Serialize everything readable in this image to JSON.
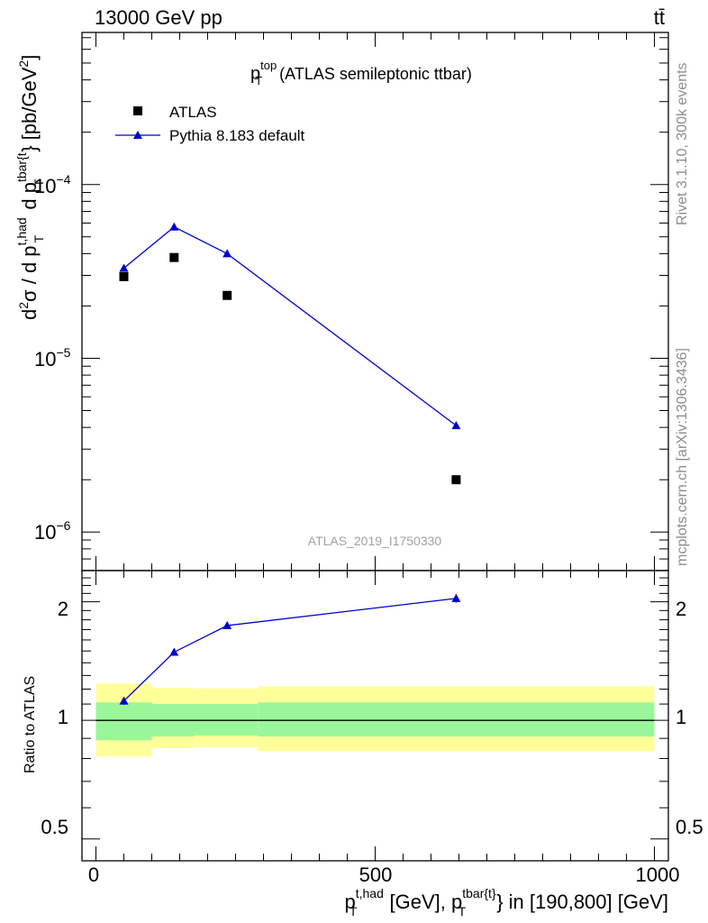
{
  "header": {
    "energy": "13000 GeV pp",
    "process": "tt̄"
  },
  "side_labels": {
    "rivet": "Rivet 3.1.10,  300k events",
    "source": "mcplots.cern.ch [arXiv:1306.3436]"
  },
  "watermark": "ATLAS_2019_I1750330",
  "chart_data": [
    {
      "type": "scatter",
      "title": {
        "base": "p",
        "sup": "top",
        "sub": "T",
        "rest": " (ATLAS semileptonic ttbar)"
      },
      "ylabel": "d²σ / d p_T^{t,had} d p_T^{tbar{t}} [pb/GeV²]",
      "yscale": "log",
      "ylim": [
        6e-07,
        0.00075
      ],
      "xlim": [
        -25,
        1025
      ],
      "ytick_labels": [
        {
          "base": "10",
          "exp": "−4"
        },
        {
          "base": "10",
          "exp": "−5"
        },
        {
          "base": "10",
          "exp": "−6"
        }
      ],
      "legend": [
        "ATLAS",
        "Pythia 8.183 default"
      ],
      "series": [
        {
          "name": "ATLAS",
          "x": [
            50,
            140,
            235,
            645
          ],
          "y": [
            2.95e-05,
            3.8e-05,
            2.3e-05,
            2e-06
          ]
        },
        {
          "name": "Pythia 8.183 default",
          "x": [
            50,
            140,
            235,
            645
          ],
          "y": [
            3.3e-05,
            5.7e-05,
            4e-05,
            4.1e-06
          ]
        }
      ]
    },
    {
      "type": "line",
      "ylabel": "Ratio to ATLAS",
      "yscale": "log",
      "ylim": [
        0.44,
        2.4
      ],
      "xlim": [
        -25,
        1025
      ],
      "xlabel": {
        "p1": "p",
        "sup1": "t,had",
        "sub1": "T",
        "mid": " [GeV], p",
        "sup2": "tbar{t}",
        "sub2": "T",
        "tail": "} in [190,800] [GeV]"
      },
      "xtick_labels": [
        "0",
        "500",
        "1000"
      ],
      "ytick_labels": [
        "0.5",
        "1",
        "2"
      ],
      "ratio": {
        "x": [
          50,
          140,
          235,
          645
        ],
        "y": [
          1.12,
          1.49,
          1.74,
          2.04
        ],
        "err": [
          0.025,
          0.03,
          0.03,
          0.05
        ]
      },
      "bands": [
        {
          "x0": 0,
          "x1": 100,
          "g_lo": 0.89,
          "g_hi": 1.11,
          "y_lo": 0.81,
          "y_hi": 1.24
        },
        {
          "x0": 100,
          "x1": 175,
          "g_lo": 0.91,
          "g_hi": 1.1,
          "y_lo": 0.85,
          "y_hi": 1.21
        },
        {
          "x0": 175,
          "x1": 290,
          "g_lo": 0.915,
          "g_hi": 1.1,
          "y_lo": 0.855,
          "y_hi": 1.205
        },
        {
          "x0": 290,
          "x1": 1000,
          "g_lo": 0.91,
          "g_hi": 1.11,
          "y_lo": 0.835,
          "y_hi": 1.22
        }
      ],
      "colors": {
        "green": "#99f799",
        "yellow": "#ffff9a",
        "mc": "#0000cc"
      }
    }
  ]
}
